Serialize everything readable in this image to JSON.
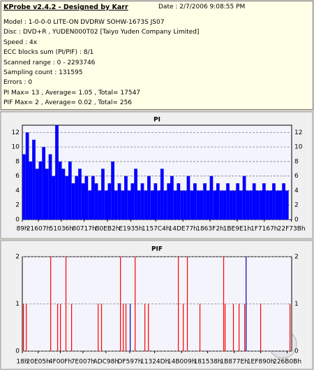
{
  "header": {
    "title": "KProbe v2.4.2 - Designed by Karr",
    "date": "Date : 2/7/2006 9:08:55 PM",
    "lines": [
      "Model : 1-0-0-0 LITE-ON DVDRW SOHW-1673S JS07",
      "Disc : DVD+R , YUDEN000T02 [Taiyo Yuden Company Limited]",
      "Speed : 4x",
      "ECC blocks sum (PI/PIF) : 8/1",
      "Scanned range : 0 - 2293746",
      "Sampling count : 131595",
      "Errors : 0",
      "PI Max= 13 , Average= 1.05 , Total= 17547",
      "PIF Max= 2 , Average= 0.02 , Total= 256"
    ]
  },
  "chart_data": [
    {
      "type": "bar",
      "title": "PI",
      "color": "#0000ff",
      "grid": true,
      "xlim": [
        0,
        2293746
      ],
      "ylim": [
        0,
        13
      ],
      "yticks": [
        0,
        2,
        4,
        6,
        8,
        10,
        12
      ],
      "xticks": [
        {
          "value": 137,
          "label": "89h"
        },
        {
          "value": 136711,
          "label": "21607h"
        },
        {
          "value": 331830,
          "label": "51036h"
        },
        {
          "value": 526103,
          "label": "80717h"
        },
        {
          "value": 724658,
          "label": "B0EB2h"
        },
        {
          "value": 923957,
          "label": "E1935h"
        },
        {
          "value": 1136580,
          "label": "1157C4h"
        },
        {
          "value": 1367671,
          "label": "14DE77h"
        },
        {
          "value": 1598450,
          "label": "1863F2h"
        },
        {
          "value": 1829345,
          "label": "1BE9E1h"
        },
        {
          "value": 2060647,
          "label": "1F7167h"
        },
        {
          "value": 2291515,
          "label": "22F73Bh"
        }
      ],
      "x": [
        0,
        28000,
        56000,
        84000,
        112000,
        140000,
        168000,
        196000,
        224000,
        252000,
        280000,
        308000,
        336000,
        364000,
        392000,
        420000,
        448000,
        476000,
        504000,
        532000,
        560000,
        588000,
        616000,
        644000,
        672000,
        700000,
        728000,
        756000,
        784000,
        812000,
        840000,
        868000,
        896000,
        924000,
        952000,
        980000,
        1008000,
        1036000,
        1064000,
        1092000,
        1120000,
        1148000,
        1176000,
        1204000,
        1232000,
        1260000,
        1288000,
        1316000,
        1344000,
        1372000,
        1400000,
        1428000,
        1456000,
        1484000,
        1512000,
        1540000,
        1568000,
        1596000,
        1624000,
        1652000,
        1680000,
        1708000,
        1736000,
        1764000,
        1792000,
        1820000,
        1848000,
        1876000,
        1904000,
        1932000,
        1960000,
        1988000,
        2016000,
        2044000,
        2072000,
        2100000,
        2128000,
        2156000,
        2184000,
        2212000,
        2240000
      ],
      "values": [
        9,
        12,
        8,
        11,
        7,
        8,
        10,
        7,
        9,
        6,
        13,
        8,
        7,
        6,
        8,
        5,
        6,
        7,
        5,
        6,
        4,
        6,
        5,
        4,
        7,
        4,
        5,
        8,
        4,
        5,
        4,
        6,
        4,
        5,
        7,
        4,
        5,
        4,
        6,
        4,
        5,
        4,
        7,
        4,
        5,
        6,
        4,
        5,
        4,
        4,
        6,
        4,
        5,
        4,
        4,
        5,
        4,
        6,
        4,
        5,
        4,
        4,
        5,
        4,
        4,
        5,
        4,
        6,
        4,
        4,
        5,
        4,
        4,
        5,
        4,
        4,
        5,
        4,
        4,
        5,
        4
      ]
    },
    {
      "type": "bar",
      "title": "PIF",
      "grid": true,
      "xlim": [
        0,
        2293746
      ],
      "ylim": [
        0,
        2
      ],
      "yticks": [
        0,
        1,
        2
      ],
      "xticks": [
        {
          "value": 24,
          "label": "18h"
        },
        {
          "value": 134661,
          "label": "20E05h"
        },
        {
          "value": 323599,
          "label": "4F00Fh"
        },
        {
          "value": 516103,
          "label": "7E007h"
        },
        {
          "value": 711832,
          "label": "ADC98h"
        },
        {
          "value": 914839,
          "label": "DF597h"
        },
        {
          "value": 1126989,
          "label": "11324Dh"
        },
        {
          "value": 1355785,
          "label": "14B009h"
        },
        {
          "value": 1578296,
          "label": "181538h"
        },
        {
          "value": 1804158,
          "label": "1B877Eh"
        },
        {
          "value": 2029712,
          "label": "1EF890h"
        },
        {
          "value": 2255627,
          "label": "226B0Bh"
        }
      ],
      "series": [
        {
          "color": "#ff0000",
          "x": [
            6000,
            30000,
            238000,
            297000,
            321000,
            368000,
            416000,
            642000,
            671000,
            832000,
            856000,
            879000,
            957000,
            1040000,
            1070000,
            1325000,
            1367000,
            1402000,
            1509000,
            1711000,
            1723000,
            1794000,
            1842000,
            1890000,
            2026000,
            2276000
          ],
          "values": [
            1,
            1,
            2,
            1,
            1,
            2,
            1,
            1,
            1,
            2,
            1,
            1,
            2,
            1,
            1,
            2,
            1,
            2,
            1,
            2,
            1,
            1,
            1,
            1,
            1,
            1
          ]
        },
        {
          "color": "#0000c0",
          "x": [
            915000,
            1902000
          ],
          "values": [
            1,
            2
          ]
        }
      ]
    }
  ]
}
